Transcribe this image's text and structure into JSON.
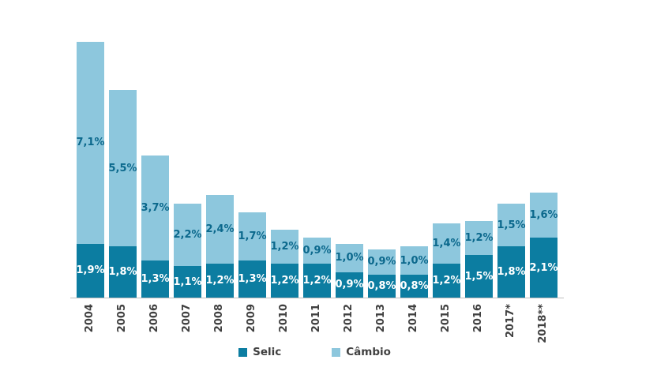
{
  "chart_data": {
    "type": "bar",
    "stacked": true,
    "title": "",
    "xlabel": "",
    "ylabel": "",
    "grid": false,
    "legend_position": "bottom",
    "ylim": [
      0,
      9.5
    ],
    "categories": [
      "2004",
      "2005",
      "2006",
      "2007",
      "2008",
      "2009",
      "2010",
      "2011",
      "2012",
      "2013",
      "2014",
      "2015",
      "2016",
      "2017*",
      "2018**"
    ],
    "series": [
      {
        "name": "Selic",
        "values": [
          1.9,
          1.8,
          1.3,
          1.1,
          1.2,
          1.3,
          1.2,
          1.2,
          0.9,
          0.8,
          0.8,
          1.2,
          1.5,
          1.8,
          2.1
        ],
        "labels": [
          "1,9%",
          "1,8%",
          "1,3%",
          "1,1%",
          "1,2%",
          "1,3%",
          "1,2%",
          "1,2%",
          "0,9%",
          "0,8%",
          "0,8%",
          "1,2%",
          "1,5%",
          "1,8%",
          "2,1%"
        ]
      },
      {
        "name": "Câmbio",
        "values": [
          7.1,
          5.5,
          3.7,
          2.2,
          2.4,
          1.7,
          1.2,
          0.9,
          1.0,
          0.9,
          1.0,
          1.4,
          1.2,
          1.5,
          1.6
        ],
        "labels": [
          "7,1%",
          "5,5%",
          "3,7%",
          "2,2%",
          "2,4%",
          "1,7%",
          "1,2%",
          "0,9%",
          "1,0%",
          "0,9%",
          "1,0%",
          "1,4%",
          "1,2%",
          "1,5%",
          "1,6%"
        ]
      }
    ]
  },
  "legend": {
    "items": [
      {
        "label": "Selic"
      },
      {
        "label": "Câmbio"
      }
    ]
  },
  "colors": {
    "selic_bar": "#0c7da1",
    "cambio_bar": "#8dc7dd",
    "selic_label_text": "#ffffff",
    "cambio_label_text": "#0b688c",
    "axis_text": "#404040",
    "axis_line": "#bfbfbf"
  }
}
